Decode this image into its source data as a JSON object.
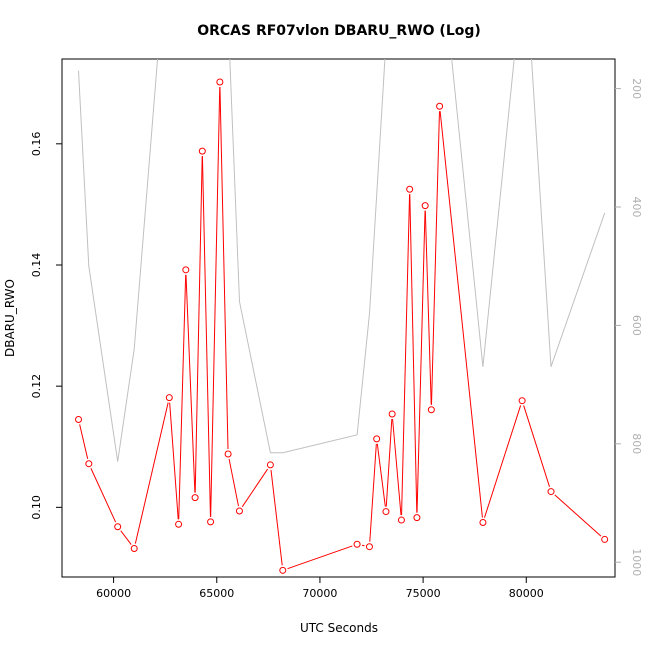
{
  "chart_data": {
    "type": "line",
    "title": "ORCAS RF07vlon DBARU_RWO (Log)",
    "xlabel": "UTC Seconds",
    "ylabel": "DBARU_RWO",
    "xlim": [
      57500,
      84300
    ],
    "ylim": [
      0.0885,
      0.174
    ],
    "x_ticks": [
      60000,
      65000,
      70000,
      75000,
      80000
    ],
    "y_ticks": [
      0.1,
      0.12,
      0.14,
      0.16
    ],
    "x_tick_labels": [
      "60000",
      "65000",
      "70000",
      "75000",
      "80000"
    ],
    "y_tick_labels": [
      "0.10",
      "0.12",
      "0.14",
      "0.16"
    ],
    "series": [
      {
        "color": "#ff0000",
        "marker": "open-circle",
        "x": [
          58300,
          58800,
          60200,
          61000,
          62700,
          63150,
          63500,
          63950,
          64300,
          64700,
          65150,
          65550,
          66100,
          67600,
          68200,
          71800,
          72400,
          72750,
          73200,
          73500,
          73950,
          74350,
          74700,
          75100,
          75400,
          75800,
          77900,
          79800,
          81200,
          83800
        ],
        "y": [
          0.1145,
          0.1072,
          0.0968,
          0.0932,
          0.1181,
          0.0972,
          0.1392,
          0.1016,
          0.1588,
          0.0976,
          0.1702,
          0.1088,
          0.0994,
          0.107,
          0.0896,
          0.0939,
          0.0935,
          0.1113,
          0.0993,
          0.1154,
          0.0979,
          0.1525,
          0.0983,
          0.1498,
          0.1161,
          0.1662,
          0.0975,
          0.1176,
          0.1026,
          0.0947
        ]
      },
      {
        "color": "#c0c0c0",
        "axis": "right",
        "x": [
          58300,
          58800,
          60200,
          61000,
          62200,
          62700,
          63150,
          63500,
          63950,
          64300,
          64700,
          65150,
          65600,
          66100,
          67600,
          68200,
          71800,
          72400,
          73200,
          73950,
          74350,
          74700,
          75100,
          75400,
          75800,
          76300,
          77900,
          79500,
          80200,
          81200,
          83800
        ],
        "y": [
          170,
          500,
          830,
          640,
          120,
          120,
          120,
          120,
          120,
          120,
          120,
          120,
          120,
          560,
          815,
          815,
          785,
          580,
          120,
          120,
          120,
          120,
          120,
          120,
          120,
          120,
          670,
          120,
          120,
          670,
          410
        ]
      }
    ],
    "right_axis": {
      "lim": [
        1025,
        150
      ],
      "ticks": [
        200,
        400,
        600,
        800,
        1000
      ],
      "tick_labels": [
        "200",
        "400",
        "600",
        "800",
        "1000"
      ]
    }
  }
}
